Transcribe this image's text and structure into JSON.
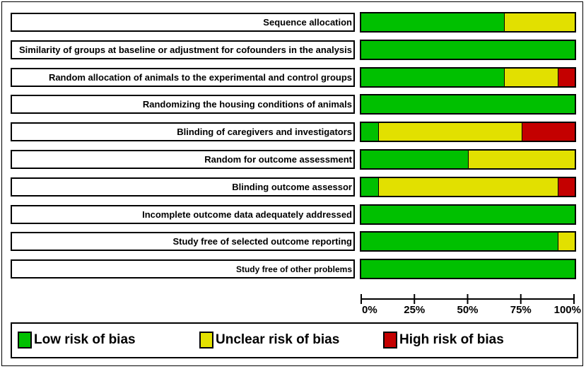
{
  "chart_data": {
    "type": "bar",
    "orientation": "horizontal",
    "stacked": true,
    "categories": [
      "Sequence allocation",
      "Similarity of groups at baseline or adjustment for cofounders in the analysis",
      "Random allocation of animals to the experimental and control groups",
      "Randomizing the housing conditions of animals",
      "Blinding of caregivers and investigators",
      "Random for outcome assessment",
      "Blinding outcome assessor",
      "Incomplete outcome data adequately addressed",
      "Study free of selected outcome reporting",
      "Study free of other problems"
    ],
    "series": [
      {
        "name": "Low risk of bias",
        "color": "#00c000",
        "values": [
          67,
          100,
          67,
          100,
          8,
          50,
          8,
          100,
          92,
          100
        ]
      },
      {
        "name": "Unclear risk of bias",
        "color": "#e2e000",
        "values": [
          33,
          0,
          25,
          0,
          67,
          50,
          84,
          0,
          8,
          0
        ]
      },
      {
        "name": "High risk of bias",
        "color": "#c40000",
        "values": [
          0,
          0,
          8,
          0,
          25,
          0,
          8,
          0,
          0,
          0
        ]
      }
    ],
    "xlim": [
      0,
      100
    ],
    "xticks": [
      0,
      25,
      50,
      75,
      100
    ],
    "xtick_labels": [
      "0%",
      "25%",
      "50%",
      "75%",
      "100%"
    ],
    "legend": {
      "position": "bottom",
      "entries": [
        "Low risk of bias",
        "Unclear risk of bias",
        "High risk of bias"
      ]
    }
  }
}
